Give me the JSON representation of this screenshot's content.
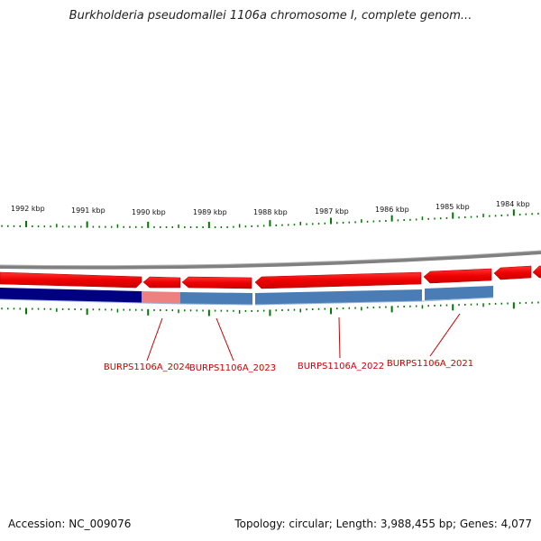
{
  "header": {
    "title": "Burkholderia pseudomallei 1106a chromosome I, complete genom..."
  },
  "footer": {
    "accession": "Accession: NC_009076",
    "summary": "Topology: circular; Length: 3,988,455 bp; Genes: 4,077"
  },
  "scale": {
    "tick_labels": [
      "1992 kbp",
      "1991 kbp",
      "1990 kbp",
      "1989 kbp",
      "1988 kbp",
      "1987 kbp",
      "1986 kbp",
      "1985 kbp",
      "1984 kbp"
    ]
  },
  "genes": [
    {
      "label": "BURPS1106A_2024",
      "color": "#d9555b"
    },
    {
      "label": "BURPS1106A_2023",
      "color": "#cc0000"
    },
    {
      "label": "BURPS1106A_2022",
      "color": "#cc0000"
    },
    {
      "label": "BURPS1106A_2021",
      "color": "#cc0000"
    }
  ],
  "colors": {
    "forward_strand": "#ee0000",
    "reverse_dark": "#000080",
    "reverse_highlight": "#ee8080",
    "reverse_light": "#4a7db5",
    "backbone": "#808080",
    "ticks": "#007700",
    "label_text": "#cc0000"
  }
}
